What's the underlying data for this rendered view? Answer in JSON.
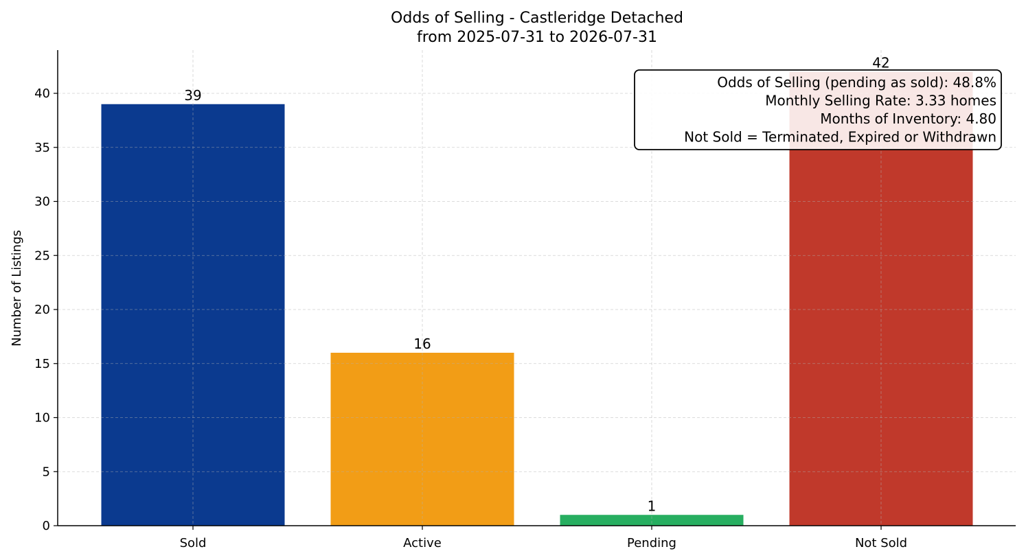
{
  "chart_data": {
    "type": "bar",
    "title_line1": "Odds of Selling - Castleridge Detached",
    "title_line2": "from 2025-07-31 to 2026-07-31",
    "xlabel": "",
    "ylabel": "Number of Listings",
    "categories": [
      "Sold",
      "Active",
      "Pending",
      "Not Sold"
    ],
    "values": [
      39,
      16,
      1,
      42
    ],
    "colors": [
      "#0b3a8f",
      "#f29d16",
      "#27ae60",
      "#c0392b"
    ],
    "ylim": [
      0,
      44
    ],
    "yticks": [
      0,
      5,
      10,
      15,
      20,
      25,
      30,
      35,
      40
    ],
    "grid": true,
    "annotation": {
      "lines": [
        "Odds of Selling (pending as sold): 48.8%",
        "Monthly Selling Rate: 3.33 homes",
        "Months of Inventory: 4.80",
        "Not Sold = Terminated, Expired or Withdrawn"
      ],
      "placement": "top-right"
    }
  }
}
